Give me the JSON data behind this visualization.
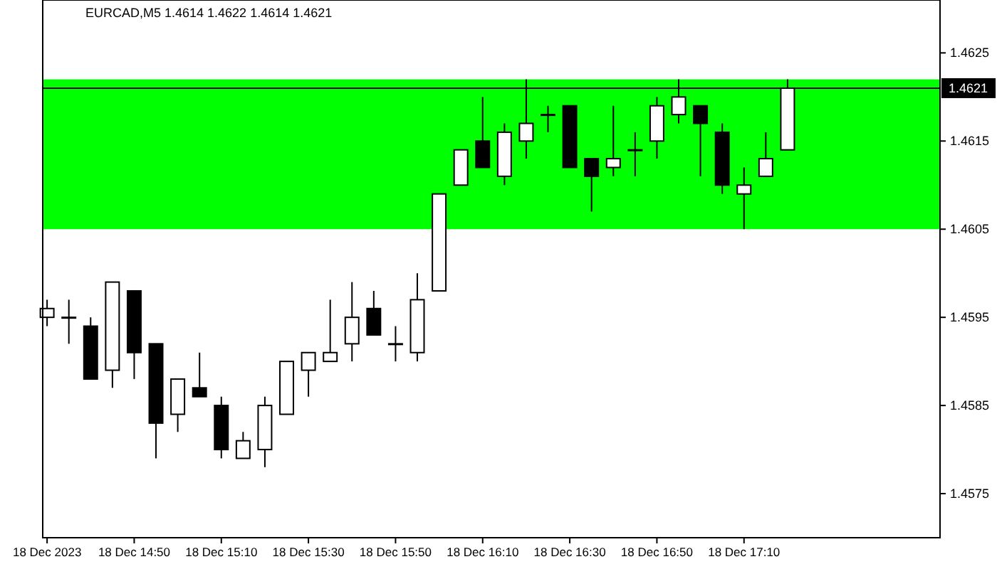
{
  "chart_data": {
    "type": "candlestick",
    "title": "EURCAD,M5  1.4614 1.4622 1.4614 1.4621",
    "x": [
      "2023-12-18T14:30",
      "2023-12-18T14:35",
      "2023-12-18T14:40",
      "2023-12-18T14:45",
      "2023-12-18T14:50",
      "2023-12-18T14:55",
      "2023-12-18T15:00",
      "2023-12-18T15:05",
      "2023-12-18T15:10",
      "2023-12-18T15:15",
      "2023-12-18T15:20",
      "2023-12-18T15:25",
      "2023-12-18T15:30",
      "2023-12-18T15:35",
      "2023-12-18T15:40",
      "2023-12-18T15:45",
      "2023-12-18T15:50",
      "2023-12-18T15:55",
      "2023-12-18T16:00",
      "2023-12-18T16:05",
      "2023-12-18T16:10",
      "2023-12-18T16:15",
      "2023-12-18T16:20",
      "2023-12-18T16:25",
      "2023-12-18T16:30",
      "2023-12-18T16:35",
      "2023-12-18T16:40",
      "2023-12-18T16:45",
      "2023-12-18T16:50",
      "2023-12-18T16:55",
      "2023-12-18T17:00",
      "2023-12-18T17:05",
      "2023-12-18T17:10",
      "2023-12-18T17:15",
      "2023-12-18T17:20"
    ],
    "ohlc": [
      [
        1.4595,
        1.4597,
        1.4594,
        1.4596
      ],
      [
        1.4595,
        1.4597,
        1.4592,
        1.4595
      ],
      [
        1.4594,
        1.4595,
        1.4588,
        1.4588
      ],
      [
        1.4589,
        1.4599,
        1.4587,
        1.4599
      ],
      [
        1.4598,
        1.4598,
        1.4588,
        1.4591
      ],
      [
        1.4592,
        1.4592,
        1.4579,
        1.4583
      ],
      [
        1.4584,
        1.4588,
        1.4582,
        1.4588
      ],
      [
        1.4587,
        1.4591,
        1.4586,
        1.4586
      ],
      [
        1.4585,
        1.4586,
        1.4579,
        1.458
      ],
      [
        1.4579,
        1.4582,
        1.4579,
        1.4581
      ],
      [
        1.458,
        1.4586,
        1.4578,
        1.4585
      ],
      [
        1.4584,
        1.459,
        1.4584,
        1.459
      ],
      [
        1.4589,
        1.4591,
        1.4586,
        1.4591
      ],
      [
        1.459,
        1.4597,
        1.459,
        1.4591
      ],
      [
        1.4592,
        1.4599,
        1.459,
        1.4595
      ],
      [
        1.4596,
        1.4598,
        1.4593,
        1.4593
      ],
      [
        1.4592,
        1.4594,
        1.459,
        1.4592
      ],
      [
        1.4591,
        1.46,
        1.459,
        1.4597
      ],
      [
        1.4598,
        1.4609,
        1.4598,
        1.4609
      ],
      [
        1.461,
        1.4614,
        1.461,
        1.4614
      ],
      [
        1.4615,
        1.462,
        1.4612,
        1.4612
      ],
      [
        1.4611,
        1.4617,
        1.461,
        1.4616
      ],
      [
        1.4615,
        1.4622,
        1.4613,
        1.4617
      ],
      [
        1.4618,
        1.4619,
        1.4616,
        1.4618
      ],
      [
        1.4619,
        1.4619,
        1.4612,
        1.4612
      ],
      [
        1.4613,
        1.4613,
        1.4607,
        1.4611
      ],
      [
        1.4612,
        1.4619,
        1.4611,
        1.4613
      ],
      [
        1.4614,
        1.4616,
        1.4611,
        1.4614
      ],
      [
        1.4615,
        1.462,
        1.4613,
        1.4619
      ],
      [
        1.4618,
        1.4622,
        1.4617,
        1.462
      ],
      [
        1.4619,
        1.4619,
        1.4611,
        1.4617
      ],
      [
        1.4616,
        1.4617,
        1.4609,
        1.461
      ],
      [
        1.4609,
        1.4612,
        1.4605,
        1.461
      ],
      [
        1.4611,
        1.4616,
        1.4611,
        1.4613
      ],
      [
        1.4614,
        1.4622,
        1.4614,
        1.4621
      ]
    ],
    "xlim": [
      "2023-12-18T14:29",
      "2023-12-18T17:55"
    ],
    "xticks": [
      {
        "value": "2023-12-18T14:30",
        "label": "18 Dec 2023"
      },
      {
        "value": "2023-12-18T14:50",
        "label": "18 Dec 14:50"
      },
      {
        "value": "2023-12-18T15:10",
        "label": "18 Dec 15:10"
      },
      {
        "value": "2023-12-18T15:30",
        "label": "18 Dec 15:30"
      },
      {
        "value": "2023-12-18T15:50",
        "label": "18 Dec 15:50"
      },
      {
        "value": "2023-12-18T16:10",
        "label": "18 Dec 16:10"
      },
      {
        "value": "2023-12-18T16:30",
        "label": "18 Dec 16:30"
      },
      {
        "value": "2023-12-18T16:50",
        "label": "18 Dec 16:50"
      },
      {
        "value": "2023-12-18T17:10",
        "label": "18 Dec 17:10"
      }
    ],
    "ylim": [
      1.457,
      1.4631
    ],
    "yticks": [
      1.4575,
      1.4585,
      1.4595,
      1.4605,
      1.4615,
      1.4625
    ],
    "bands": [
      {
        "axis": "y",
        "from": 1.4605,
        "to": 1.4622,
        "color": "#00ff00"
      }
    ],
    "ref_lines": [
      {
        "axis": "y",
        "value": 1.4621,
        "label": "1.4621"
      }
    ],
    "grid": false
  }
}
